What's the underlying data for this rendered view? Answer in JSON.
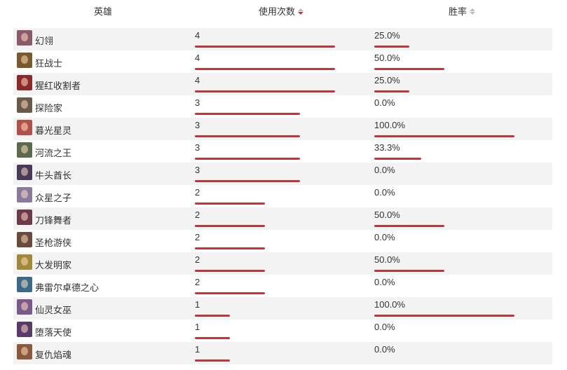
{
  "headers": {
    "hero": "英雄",
    "uses": "使用次数",
    "winrate": "胜率"
  },
  "sort": {
    "column": "uses",
    "direction": "desc",
    "active_color": "#c4343b"
  },
  "bar_color": "#c4343b",
  "max_uses": 4,
  "rows": [
    {
      "hero": "幻翎",
      "avatar_color": "#8a5a6a",
      "uses": "4",
      "uses_value": 4,
      "winrate": "25.0%",
      "win_value": 25.0
    },
    {
      "hero": "狂战士",
      "avatar_color": "#7a5a2a",
      "uses": "4",
      "uses_value": 4,
      "winrate": "50.0%",
      "win_value": 50.0
    },
    {
      "hero": "猩红收割者",
      "avatar_color": "#8a2a2a",
      "uses": "4",
      "uses_value": 4,
      "winrate": "25.0%",
      "win_value": 25.0
    },
    {
      "hero": "探险家",
      "avatar_color": "#6a5a4a",
      "uses": "3",
      "uses_value": 3,
      "winrate": "0.0%",
      "win_value": 0.0
    },
    {
      "hero": "暮光星灵",
      "avatar_color": "#b0524a",
      "uses": "3",
      "uses_value": 3,
      "winrate": "100.0%",
      "win_value": 100.0
    },
    {
      "hero": "河流之王",
      "avatar_color": "#5a6a4a",
      "uses": "3",
      "uses_value": 3,
      "winrate": "33.3%",
      "win_value": 33.3
    },
    {
      "hero": "牛头酋长",
      "avatar_color": "#4a3a5a",
      "uses": "3",
      "uses_value": 3,
      "winrate": "0.0%",
      "win_value": 0.0
    },
    {
      "hero": "众星之子",
      "avatar_color": "#8a7aa0",
      "uses": "2",
      "uses_value": 2,
      "winrate": "0.0%",
      "win_value": 0.0
    },
    {
      "hero": "刀锋舞者",
      "avatar_color": "#6a3a4a",
      "uses": "2",
      "uses_value": 2,
      "winrate": "50.0%",
      "win_value": 50.0
    },
    {
      "hero": "圣枪游侠",
      "avatar_color": "#6a4a3a",
      "uses": "2",
      "uses_value": 2,
      "winrate": "0.0%",
      "win_value": 0.0
    },
    {
      "hero": "大发明家",
      "avatar_color": "#a08a3a",
      "uses": "2",
      "uses_value": 2,
      "winrate": "50.0%",
      "win_value": 50.0
    },
    {
      "hero": "弗雷尔卓德之心",
      "avatar_color": "#3a6a8a",
      "uses": "2",
      "uses_value": 2,
      "winrate": "0.0%",
      "win_value": 0.0
    },
    {
      "hero": "仙灵女巫",
      "avatar_color": "#7a5a8a",
      "uses": "1",
      "uses_value": 1,
      "winrate": "100.0%",
      "win_value": 100.0
    },
    {
      "hero": "堕落天使",
      "avatar_color": "#5a3a6a",
      "uses": "1",
      "uses_value": 1,
      "winrate": "0.0%",
      "win_value": 0.0
    },
    {
      "hero": "复仇焰魂",
      "avatar_color": "#8a5a3a",
      "uses": "1",
      "uses_value": 1,
      "winrate": "0.0%",
      "win_value": 0.0
    }
  ]
}
